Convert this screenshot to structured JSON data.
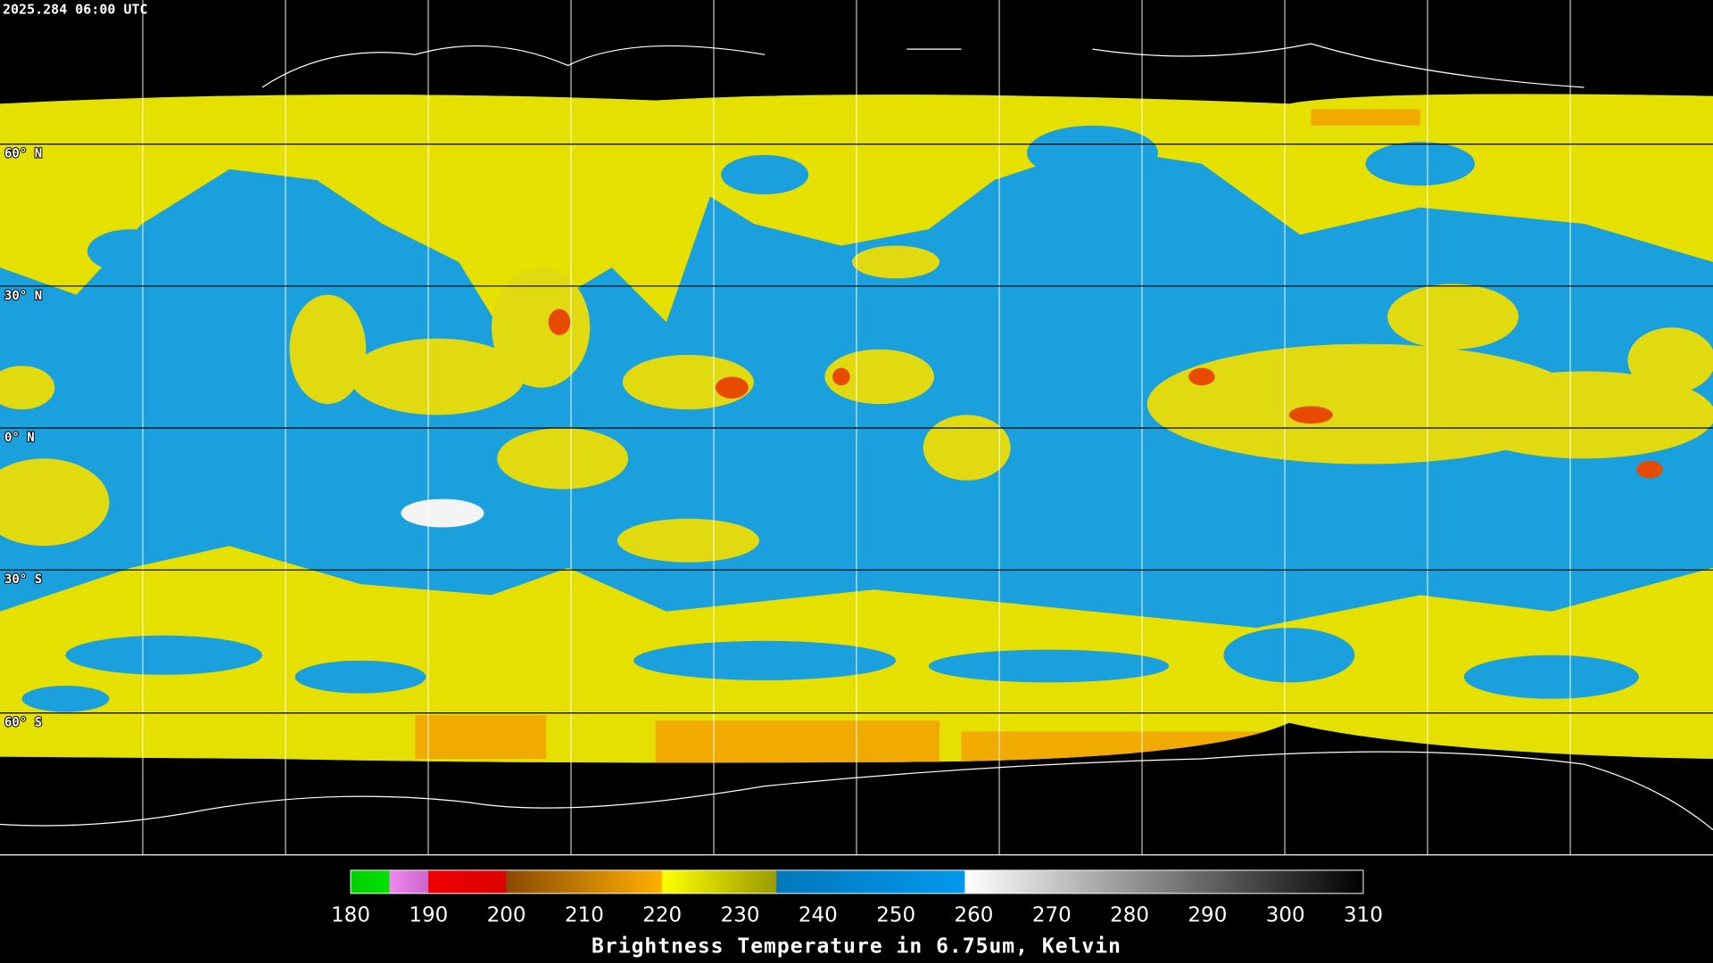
{
  "header": {
    "title": "2025.284 06:00 UTC"
  },
  "map": {
    "lat_labels": [
      "60° N",
      "30° N",
      "0° N",
      "30° S",
      "60° S"
    ]
  },
  "colorbar": {
    "range": [
      180,
      310
    ],
    "ticks": [
      180,
      190,
      200,
      210,
      220,
      230,
      240,
      250,
      260,
      270,
      280,
      290,
      300,
      310
    ],
    "title": "Brightness Temperature in 6.75um, Kelvin"
  }
}
